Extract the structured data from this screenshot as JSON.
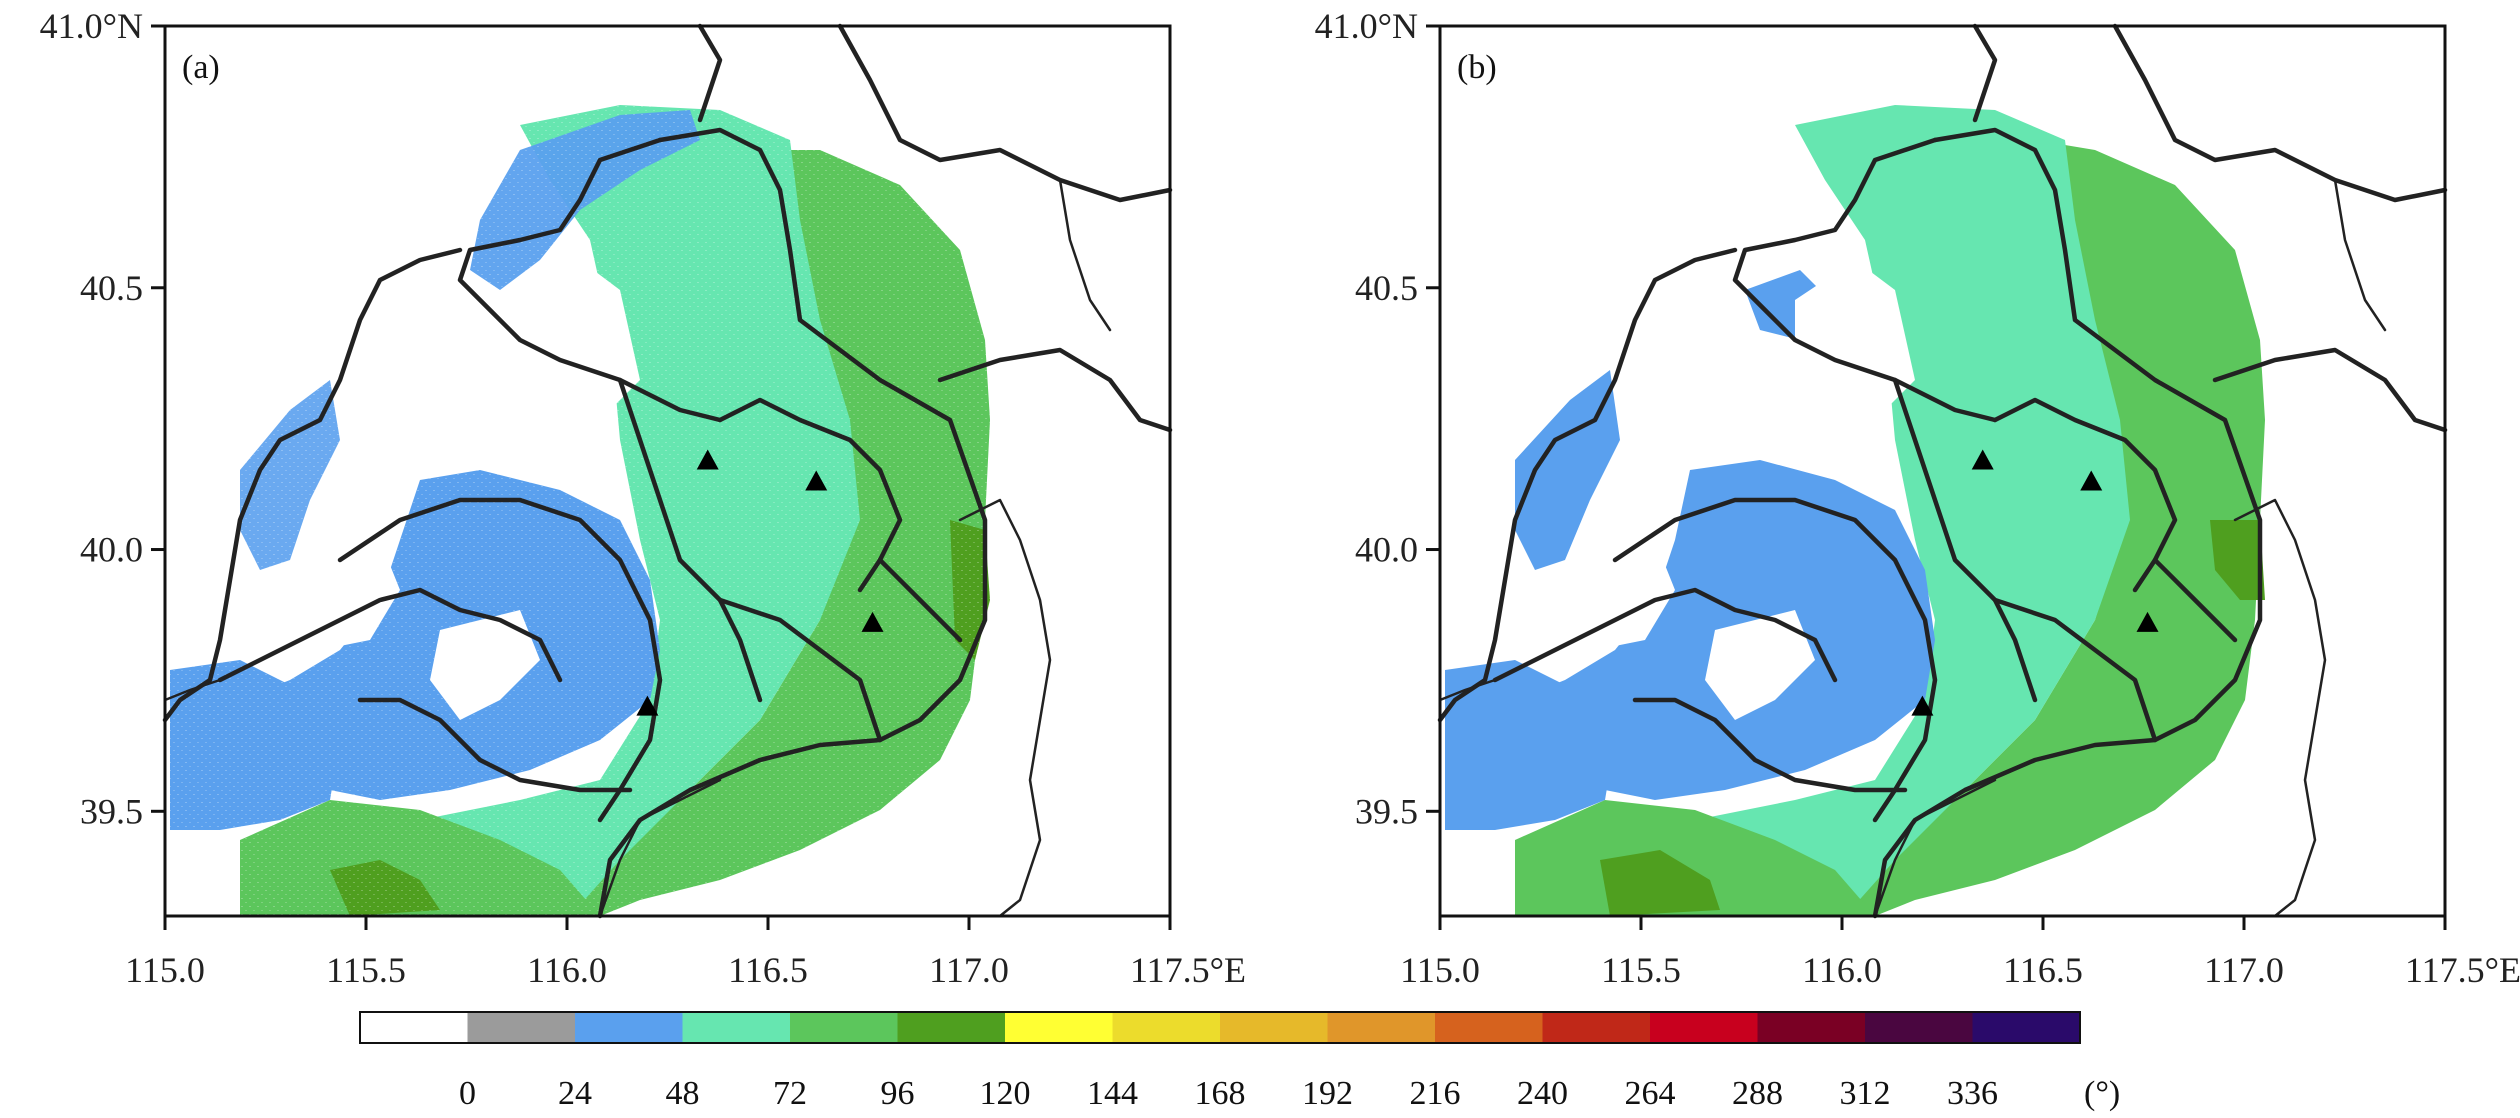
{
  "panels": [
    {
      "id": "a",
      "label": "(a)",
      "sites": [
        {
          "lon": 116.35,
          "lat": 40.17
        },
        {
          "lon": 116.62,
          "lat": 40.13
        },
        {
          "lon": 116.76,
          "lat": 39.86
        },
        {
          "lon": 116.2,
          "lat": 39.7
        }
      ]
    },
    {
      "id": "b",
      "label": "(b)",
      "sites": [
        {
          "lon": 116.35,
          "lat": 40.17
        },
        {
          "lon": 116.62,
          "lat": 40.13
        },
        {
          "lon": 116.76,
          "lat": 39.86
        },
        {
          "lon": 116.2,
          "lat": 39.7
        }
      ]
    }
  ],
  "axes": {
    "x_ticks": [
      "115.0",
      "115.5",
      "116.0",
      "116.5",
      "117.0",
      "117.5°E"
    ],
    "x_values": [
      115.0,
      115.5,
      116.0,
      116.5,
      117.0,
      117.5
    ],
    "y_ticks": [
      "41.0°N",
      "40.5",
      "40.0",
      "39.5"
    ],
    "y_values": [
      41.0,
      40.5,
      40.0,
      39.5
    ],
    "lon_range": [
      115.0,
      117.5
    ],
    "lat_range": [
      39.3,
      41.0
    ]
  },
  "colorbar": {
    "tick_labels": [
      "0",
      "24",
      "48",
      "72",
      "96",
      "120",
      "144",
      "168",
      "192",
      "216",
      "240",
      "264",
      "288",
      "312",
      "336"
    ],
    "unit": "(°)",
    "colors": [
      "#ffffff",
      "#9b9b9b",
      "#5aa0ee",
      "#66e6b0",
      "#5cc65c",
      "#4f9f1f",
      "#ffff33",
      "#ecdc2c",
      "#e6b92a",
      "#e0962a",
      "#d6621e",
      "#c02818",
      "#c8001e",
      "#7a0024",
      "#4a0640",
      "#2a0a6a"
    ]
  },
  "chart_data": {
    "type": "heatmap",
    "title": "",
    "xlabel": "",
    "ylabel": "",
    "xlim": [
      115.0,
      117.5
    ],
    "ylim": [
      39.3,
      41.0
    ],
    "colorbar_bounds": [
      0,
      24,
      48,
      72,
      96,
      120,
      144,
      168,
      192,
      216,
      240,
      264,
      288,
      312,
      336,
      360
    ],
    "colorbar_unit": "(°)",
    "panels": [
      "(a)",
      "(b)"
    ],
    "radar_sites": [
      {
        "lon": 116.35,
        "lat": 40.17
      },
      {
        "lon": 116.62,
        "lat": 40.13
      },
      {
        "lon": 116.76,
        "lat": 39.86
      },
      {
        "lon": 116.2,
        "lat": 39.7
      }
    ],
    "dominant_classes": {
      "west_southwest": "24–48",
      "central": "48–72",
      "east_northeast": "72–96",
      "southeast_edge": "96–120"
    }
  }
}
